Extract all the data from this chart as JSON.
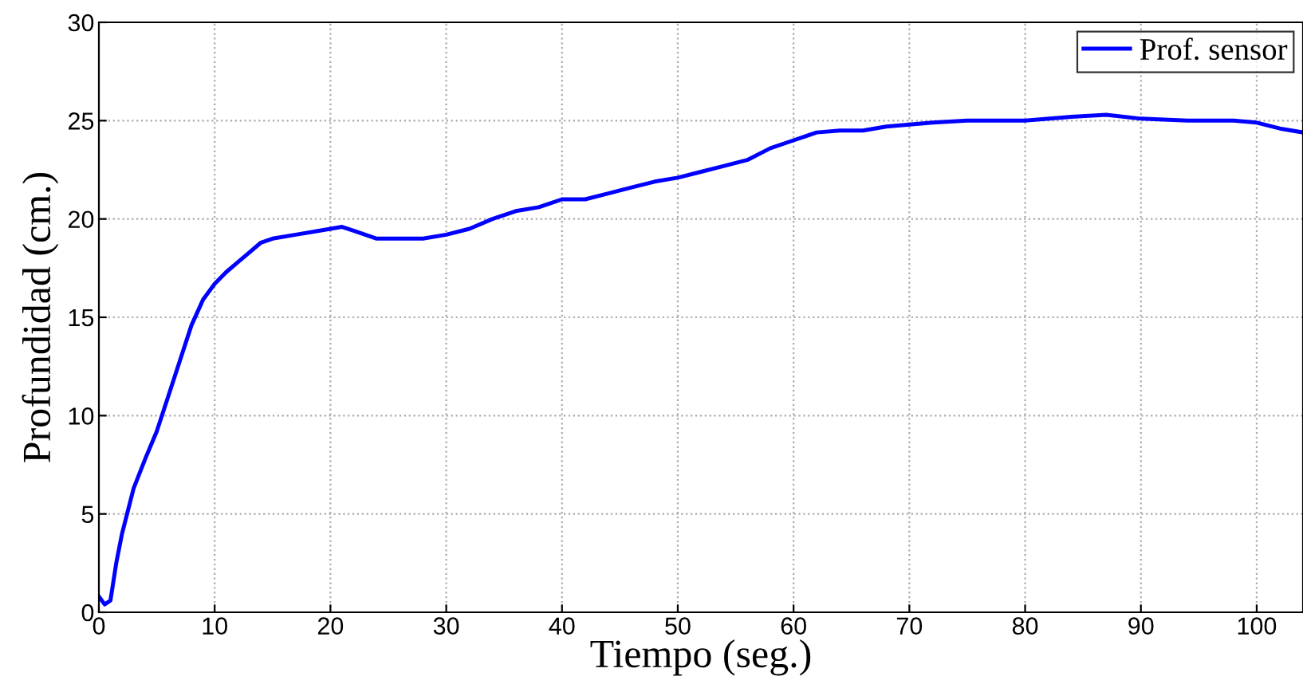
{
  "chart_data": {
    "type": "line",
    "xlabel": "Tiempo (seg.)",
    "ylabel": "Profundidad (cm.)",
    "xlim": [
      0,
      104
    ],
    "ylim": [
      0,
      30
    ],
    "xticks": [
      0,
      10,
      20,
      30,
      40,
      50,
      60,
      70,
      80,
      90,
      100
    ],
    "yticks": [
      0,
      5,
      10,
      15,
      20,
      25,
      30
    ],
    "grid": true,
    "legend": "top right",
    "line_style": "solid",
    "marker": "none",
    "series": [
      {
        "name": "Prof. sensor",
        "color": "#0000ff",
        "x": [
          0,
          0.5,
          1,
          1.5,
          2,
          3,
          4,
          5,
          6,
          7,
          8,
          9,
          10,
          11,
          12,
          13,
          14,
          15,
          17,
          19,
          21,
          22,
          24,
          26,
          28,
          30,
          32,
          34,
          36,
          38,
          40,
          42,
          44,
          46,
          48,
          50,
          52,
          54,
          56,
          58,
          60,
          62,
          64,
          66,
          68,
          70,
          72,
          75,
          78,
          80,
          84,
          87,
          90,
          94,
          98,
          100,
          102,
          104
        ],
        "values": [
          0.8,
          0.4,
          0.6,
          2.5,
          4,
          6.3,
          7.8,
          9.2,
          11,
          12.8,
          14.6,
          15.9,
          16.7,
          17.3,
          17.8,
          18.3,
          18.8,
          19,
          19.2,
          19.4,
          19.6,
          19.4,
          19.0,
          19.0,
          19.0,
          19.2,
          19.5,
          20.0,
          20.4,
          20.6,
          21.0,
          21.0,
          21.3,
          21.6,
          21.9,
          22.1,
          22.4,
          22.7,
          23.0,
          23.6,
          24.0,
          24.4,
          24.5,
          24.5,
          24.7,
          24.8,
          24.9,
          25.0,
          25.0,
          25.0,
          25.2,
          25.3,
          25.1,
          25.0,
          25.0,
          24.9,
          24.6,
          24.4
        ]
      }
    ]
  }
}
